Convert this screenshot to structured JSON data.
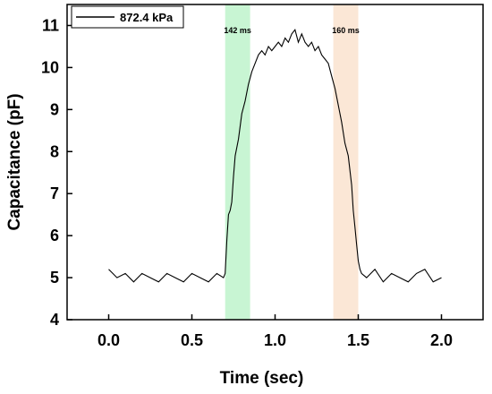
{
  "chart_data": {
    "type": "line",
    "xlabel": "Time (sec)",
    "ylabel": "Capacitance (pF)",
    "xlim": [
      -0.25,
      2.25
    ],
    "ylim": [
      4,
      11.5
    ],
    "x_ticks": [
      0.0,
      0.5,
      1.0,
      1.5,
      2.0
    ],
    "x_tick_labels": [
      "0.0",
      "0.5",
      "1.0",
      "1.5",
      "2.0"
    ],
    "y_ticks": [
      4,
      5,
      6,
      7,
      8,
      9,
      10,
      11
    ],
    "y_tick_labels": [
      "4",
      "5",
      "6",
      "7",
      "8",
      "9",
      "10",
      "11"
    ],
    "grid": false,
    "legend": {
      "placement": "top-left",
      "entries": [
        "872.4 kPa"
      ]
    },
    "series": [
      {
        "name": "872.4 kPa",
        "color": "#000000",
        "x": [
          0.0,
          0.05,
          0.1,
          0.15,
          0.2,
          0.25,
          0.3,
          0.35,
          0.4,
          0.45,
          0.5,
          0.55,
          0.6,
          0.65,
          0.69,
          0.7,
          0.71,
          0.72,
          0.73,
          0.74,
          0.75,
          0.76,
          0.78,
          0.8,
          0.82,
          0.84,
          0.86,
          0.88,
          0.9,
          0.92,
          0.94,
          0.96,
          0.98,
          1.0,
          1.02,
          1.04,
          1.06,
          1.08,
          1.1,
          1.12,
          1.14,
          1.16,
          1.18,
          1.2,
          1.22,
          1.24,
          1.26,
          1.28,
          1.3,
          1.32,
          1.34,
          1.36,
          1.38,
          1.4,
          1.42,
          1.44,
          1.46,
          1.47,
          1.48,
          1.49,
          1.5,
          1.51,
          1.52,
          1.55,
          1.6,
          1.65,
          1.7,
          1.75,
          1.8,
          1.85,
          1.9,
          1.95,
          2.0
        ],
        "values": [
          5.2,
          5.0,
          5.1,
          4.9,
          5.1,
          5.0,
          4.9,
          5.1,
          5.0,
          4.9,
          5.1,
          5.0,
          4.9,
          5.1,
          5.0,
          5.1,
          5.9,
          6.5,
          6.6,
          6.8,
          7.4,
          7.9,
          8.3,
          8.9,
          9.2,
          9.6,
          9.9,
          10.1,
          10.3,
          10.4,
          10.3,
          10.5,
          10.4,
          10.5,
          10.6,
          10.5,
          10.7,
          10.6,
          10.8,
          10.9,
          10.6,
          10.8,
          10.6,
          10.5,
          10.6,
          10.4,
          10.5,
          10.3,
          10.2,
          10.1,
          9.8,
          9.5,
          9.1,
          8.7,
          8.2,
          7.9,
          7.2,
          6.6,
          6.2,
          5.8,
          5.4,
          5.2,
          5.1,
          5.0,
          5.2,
          4.9,
          5.1,
          5.0,
          4.9,
          5.1,
          5.2,
          4.9,
          5.0
        ]
      }
    ],
    "annotations": [
      {
        "type": "band",
        "x_range": [
          0.7,
          0.85
        ],
        "color": "#c8f5d3",
        "label": "142 ms"
      },
      {
        "type": "band",
        "x_range": [
          1.35,
          1.5
        ],
        "color": "#fbe7d6",
        "label": "160 ms"
      }
    ]
  }
}
